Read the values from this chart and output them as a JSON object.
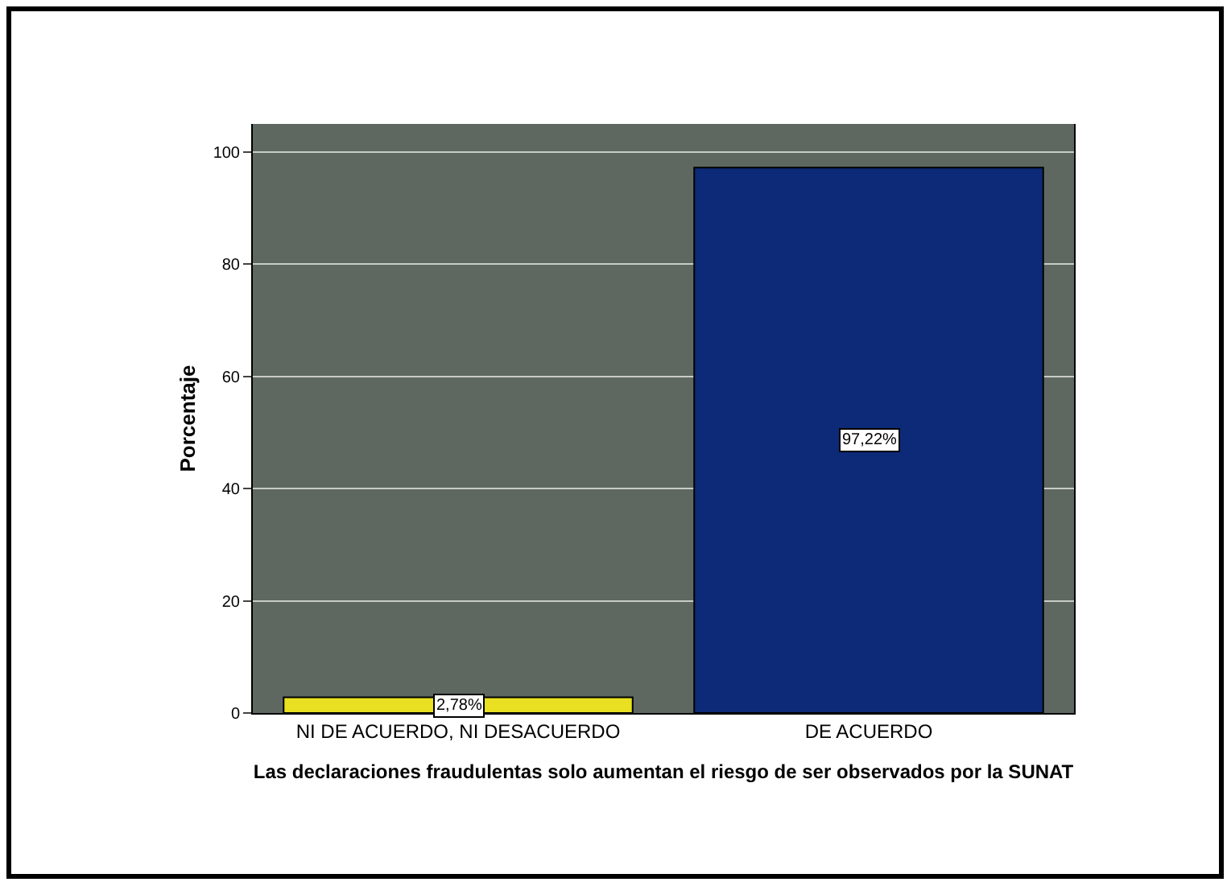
{
  "chart_data": {
    "type": "bar",
    "xlabel": "Las declaraciones fraudulentas solo aumentan el riesgo de ser observados por la SUNAT",
    "ylabel": "Porcentaje",
    "categories": [
      "NI DE ACUERDO, NI DESACUERDO",
      "DE ACUERDO"
    ],
    "values": [
      2.78,
      97.22
    ],
    "colors": [
      "#e8e020",
      "#0c2a78"
    ],
    "value_labels": [
      "2,78%",
      "97,22%"
    ],
    "ylim": [
      0,
      105
    ],
    "yticks": [
      0,
      20,
      40,
      60,
      80,
      100
    ],
    "grid": "y"
  }
}
